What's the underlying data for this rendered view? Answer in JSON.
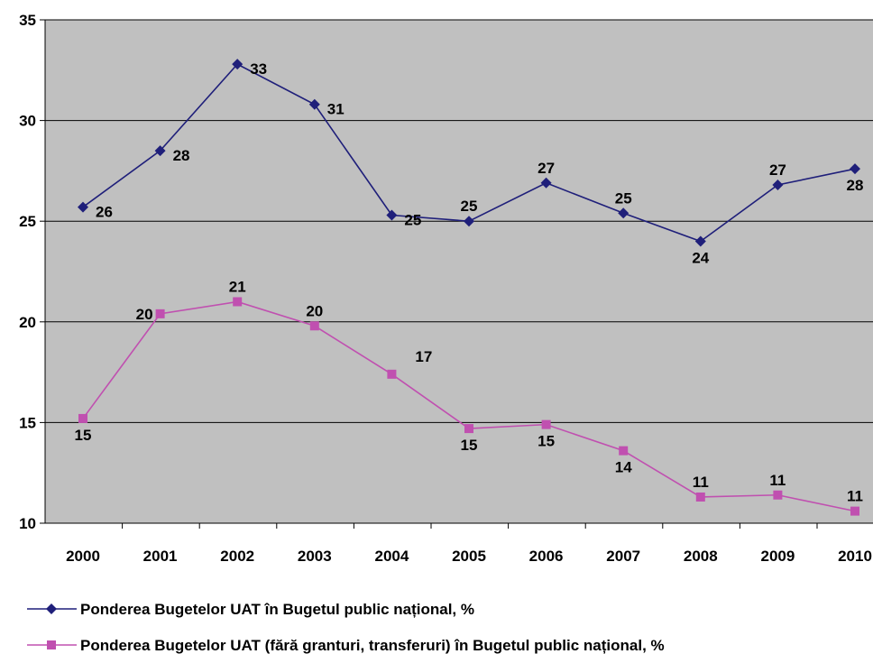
{
  "chart_data": {
    "type": "line",
    "title": "",
    "xlabel": "",
    "ylabel": "",
    "categories": [
      "2000",
      "2001",
      "2002",
      "2003",
      "2004",
      "2005",
      "2006",
      "2007",
      "2008",
      "2009",
      "2010"
    ],
    "ylim": [
      10,
      35
    ],
    "yticks": [
      10,
      15,
      20,
      25,
      30,
      35
    ],
    "grid": true,
    "legend_position": "bottom",
    "colors": {
      "plot_background": "#c0c0c0",
      "gridline": "#000000"
    },
    "series": [
      {
        "name": "Ponderea Bugetelor UAT în Bugetul public național, %",
        "marker": "diamond",
        "color": "#1f1f7a",
        "values": [
          25.7,
          28.5,
          32.8,
          30.8,
          25.3,
          25.0,
          26.9,
          25.4,
          24.0,
          26.8,
          27.6
        ],
        "labels": [
          "26",
          "28",
          "33",
          "31",
          "25",
          "25",
          "27",
          "25",
          "24",
          "27",
          "28"
        ]
      },
      {
        "name": "Ponderea Bugetelor UAT (fără granturi, transferuri) în Bugetul public național, %",
        "marker": "square",
        "color": "#c050b0",
        "values": [
          15.2,
          20.4,
          21.0,
          19.8,
          17.4,
          14.7,
          14.9,
          13.6,
          11.3,
          11.4,
          10.6
        ],
        "labels": [
          "15",
          "20",
          "21",
          "20",
          "17",
          "15",
          "15",
          "14",
          "11",
          "11",
          "11"
        ]
      }
    ]
  }
}
